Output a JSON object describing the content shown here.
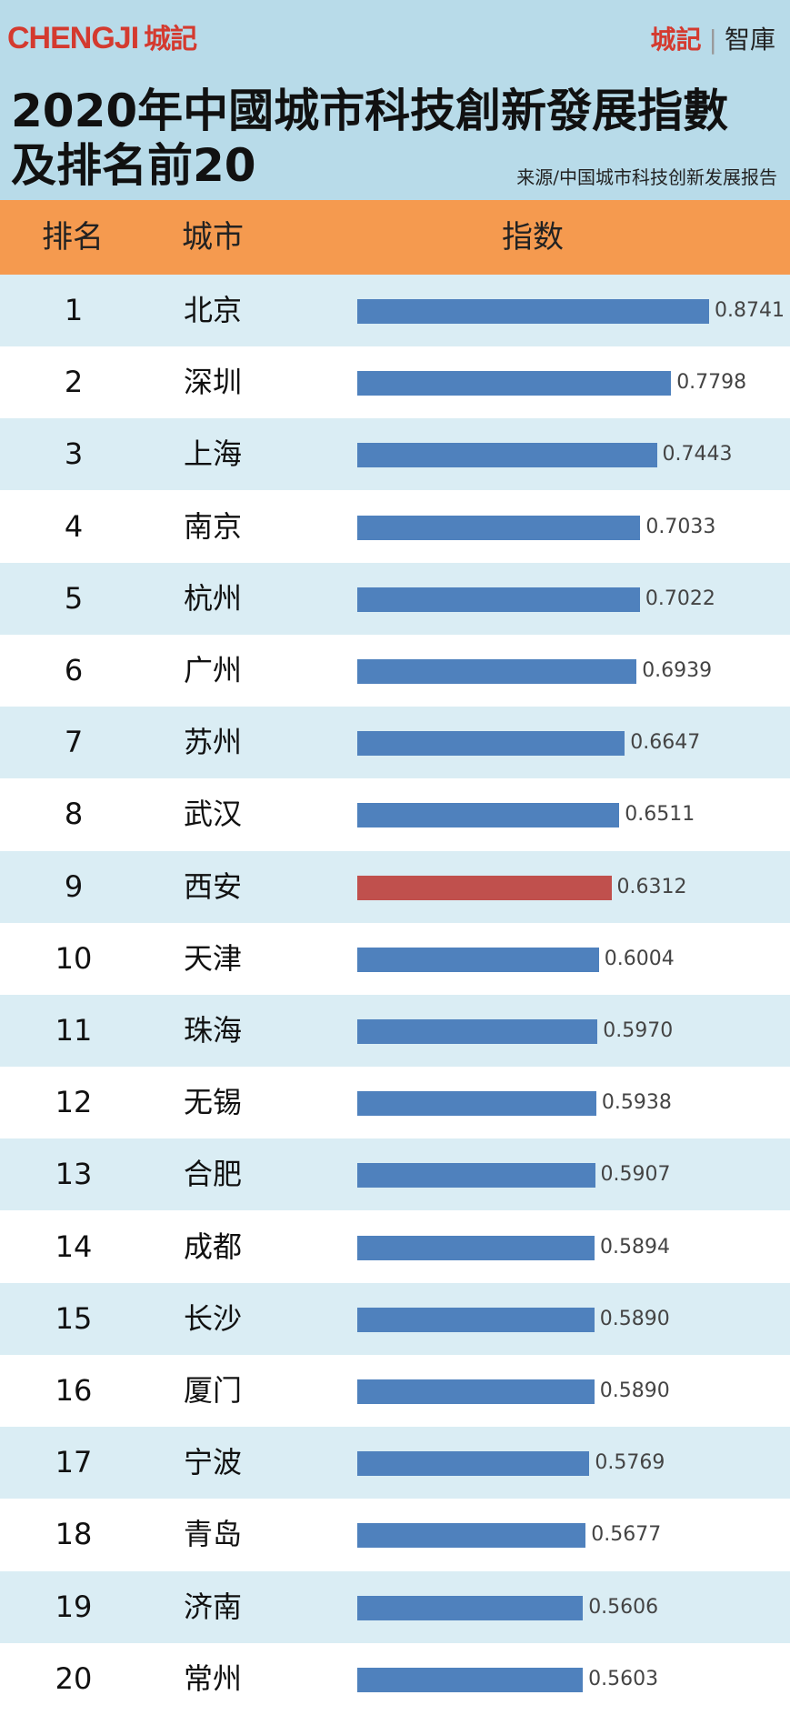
{
  "header": {
    "brand_left_en": "CHENGJI",
    "brand_left_cn": "城記",
    "brand_right_red": "城記",
    "brand_right_sep": "|",
    "brand_right_text": "智庫",
    "title_line1": "2020年中國城市科技創新發展指數",
    "title_line2": "及排名前20",
    "source": "来源/中国城市科技创新发展报告"
  },
  "columns": {
    "rank": "排名",
    "city": "城市",
    "index": "指数"
  },
  "colors": {
    "bar": "#4f81bd",
    "highlight": "#c0504d",
    "header_bg": "#b8dbe9",
    "column_header_bg": "#f59a4f",
    "alt_row": "#daedf4"
  },
  "chart_data": {
    "type": "bar",
    "orientation": "horizontal",
    "categories": [
      "北京",
      "深圳",
      "上海",
      "南京",
      "杭州",
      "广州",
      "苏州",
      "武汉",
      "西安",
      "天津",
      "珠海",
      "无锡",
      "合肥",
      "成都",
      "长沙",
      "厦门",
      "宁波",
      "青岛",
      "济南",
      "常州"
    ],
    "ranks": [
      "1",
      "2",
      "3",
      "4",
      "5",
      "6",
      "7",
      "8",
      "9",
      "10",
      "11",
      "12",
      "13",
      "14",
      "15",
      "16",
      "17",
      "18",
      "19",
      "20"
    ],
    "values": [
      0.8741,
      0.7798,
      0.7443,
      0.7033,
      0.7022,
      0.6939,
      0.6647,
      0.6511,
      0.6312,
      0.6004,
      0.597,
      0.5938,
      0.5907,
      0.5894,
      0.589,
      0.589,
      0.5769,
      0.5677,
      0.5606,
      0.5603
    ],
    "value_labels": [
      "0.8741",
      "0.7798",
      "0.7443",
      "0.7033",
      "0.7022",
      "0.6939",
      "0.6647",
      "0.6511",
      "0.6312",
      "0.6004",
      "0.5970",
      "0.5938",
      "0.5907",
      "0.5894",
      "0.5890",
      "0.5890",
      "0.5769",
      "0.5677",
      "0.5606",
      "0.5603"
    ],
    "highlight": "西安",
    "title": "2020年中國城市科技創新發展指數 及排名前20",
    "xlabel": "",
    "ylabel": ""
  }
}
